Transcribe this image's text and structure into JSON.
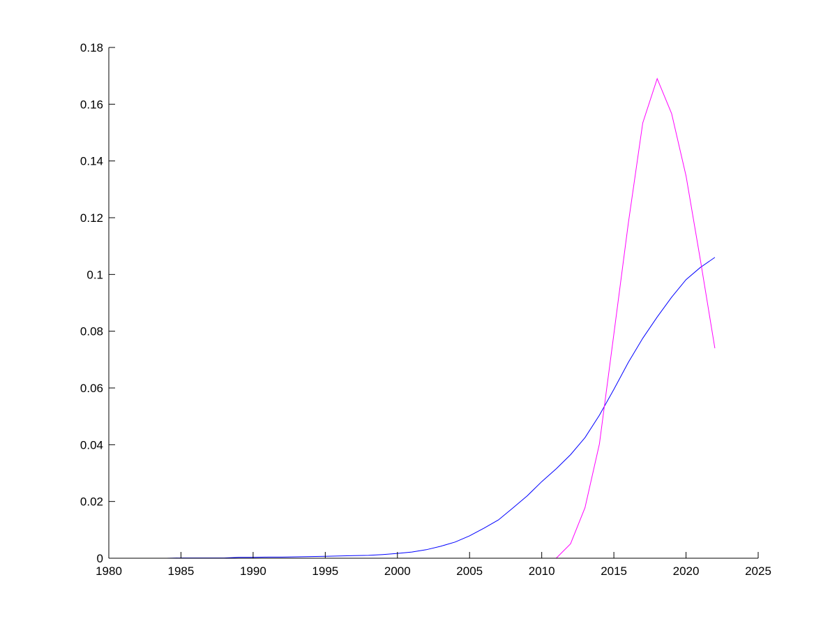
{
  "chart_data": {
    "type": "line",
    "title": "",
    "xlabel": "",
    "ylabel": "",
    "xlim": [
      1980,
      2025
    ],
    "ylim": [
      0,
      0.18
    ],
    "xticks": [
      "1980",
      "1985",
      "1990",
      "1995",
      "2000",
      "2005",
      "2010",
      "2015",
      "2020",
      "2025"
    ],
    "yticks": [
      "0",
      "0.02",
      "0.04",
      "0.06",
      "0.08",
      "0.1",
      "0.12",
      "0.14",
      "0.16",
      "0.18"
    ],
    "grid": false,
    "x": [
      1980,
      1981,
      1982,
      1983,
      1984,
      1985,
      1986,
      1987,
      1988,
      1989,
      1990,
      1991,
      1992,
      1993,
      1994,
      1995,
      1996,
      1997,
      1998,
      1999,
      2000,
      2001,
      2002,
      2003,
      2004,
      2005,
      2006,
      2007,
      2008,
      2009,
      2010,
      2011,
      2012,
      2013,
      2014,
      2015,
      2016,
      2017,
      2018,
      2019,
      2020,
      2021,
      2022
    ],
    "series": [
      {
        "color": "#0000ff",
        "values": [
          0,
          0,
          0,
          0,
          0,
          0.0001,
          0.0001,
          0.0001,
          0.0001,
          0.0003,
          0.0003,
          0.0004,
          0.0004,
          0.0005,
          0.0006,
          0.0007,
          0.0008,
          0.0009,
          0.001,
          0.0013,
          0.0017,
          0.0022,
          0.003,
          0.0042,
          0.0057,
          0.0079,
          0.0106,
          0.0135,
          0.0177,
          0.022,
          0.027,
          0.0315,
          0.0365,
          0.0425,
          0.0504,
          0.0595,
          0.069,
          0.0775,
          0.085,
          0.092,
          0.0982,
          0.1025,
          0.106
        ]
      },
      {
        "color": "#ff00ff",
        "values": [
          0,
          0,
          0,
          0,
          0,
          0,
          0,
          0,
          0,
          0,
          0,
          0,
          0,
          0,
          0,
          0,
          0,
          0,
          0,
          0,
          0,
          0,
          0,
          0,
          0,
          0,
          0,
          0,
          0,
          0,
          0,
          0,
          0.0051,
          0.0178,
          0.0403,
          0.079,
          0.118,
          0.1534,
          0.169,
          0.1567,
          0.1347,
          0.105,
          0.074
        ]
      }
    ]
  }
}
